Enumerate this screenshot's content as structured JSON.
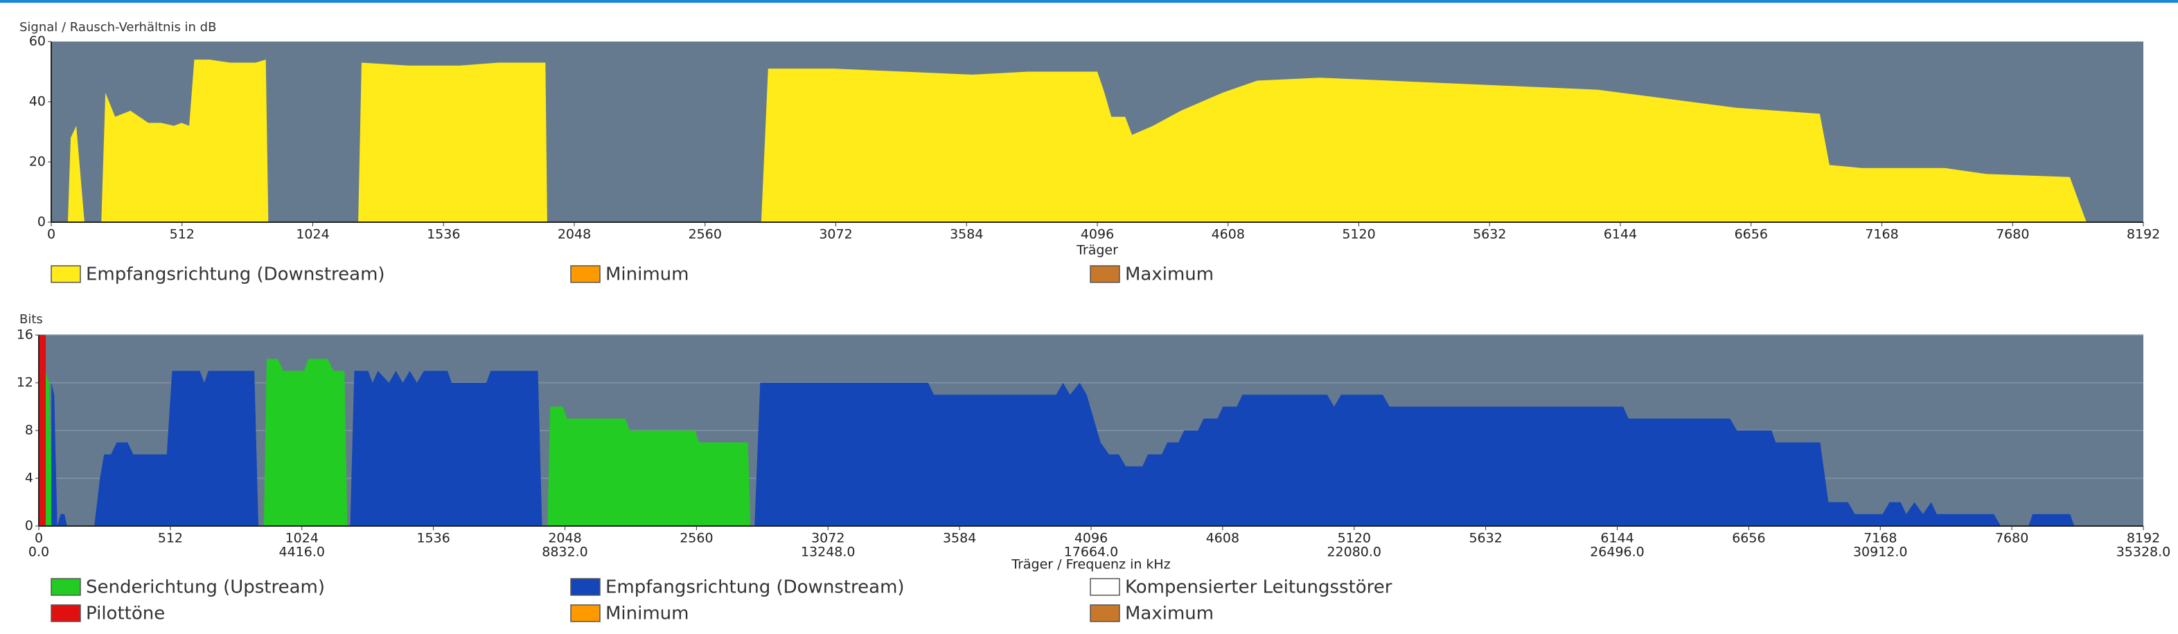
{
  "chart_data": [
    {
      "type": "area",
      "title": "Signal / Rausch-Verhältnis in dB",
      "xlabel": "Träger",
      "xlim": [
        0,
        8192
      ],
      "ylim": [
        0,
        60
      ],
      "xticks": [
        0,
        512,
        1024,
        1536,
        2048,
        2560,
        3072,
        3584,
        4096,
        4608,
        5120,
        5632,
        6144,
        6656,
        7168,
        7680,
        8192
      ],
      "yticks": [
        0,
        20,
        40,
        60
      ],
      "grid": false,
      "plot_background": "#667a8f",
      "series": [
        {
          "name": "Empfangsrichtung (Downstream)",
          "color": "#ffeb1a",
          "x": [
            65,
            76,
            98,
            130,
            160,
            196,
            212,
            250,
            310,
            380,
            430,
            480,
            510,
            540,
            560,
            620,
            700,
            800,
            840,
            850,
            1000,
            1202,
            1215,
            1400,
            1600,
            1750,
            1900,
            1935,
            1942,
            2300,
            2780,
            2807,
            3063,
            3607,
            3824,
            4096,
            4124,
            4151,
            4205,
            4232,
            4314,
            4423,
            4586,
            4722,
            4967,
            5239,
            5783,
            6055,
            6327,
            6599,
            6925,
            6963,
            7088,
            7414,
            7577,
            7904,
            7969
          ],
          "values": [
            0,
            28,
            32,
            0,
            null,
            0,
            43,
            35,
            37,
            33,
            33,
            32,
            33,
            32,
            54,
            54,
            53,
            53,
            54,
            0,
            null,
            0,
            53,
            52,
            52,
            53,
            53,
            53,
            0,
            null,
            0,
            51,
            51,
            49,
            50,
            50,
            43,
            35,
            35,
            29,
            32,
            37,
            43,
            47,
            48,
            47,
            45,
            44,
            41,
            38,
            36,
            19,
            18,
            18,
            16,
            15,
            0
          ]
        },
        {
          "name": "Minimum",
          "color": "#ff9900",
          "x": [],
          "values": []
        },
        {
          "name": "Maximum",
          "color": "#c8782a",
          "x": [],
          "values": []
        }
      ]
    },
    {
      "type": "area",
      "title": "Bits",
      "xlabel": "Träger / Frequenz in kHz",
      "xlim": [
        0,
        8192
      ],
      "ylim": [
        0,
        16
      ],
      "xticks": [
        0,
        512,
        1024,
        1536,
        2048,
        2560,
        3072,
        3584,
        4096,
        4608,
        5120,
        5632,
        6144,
        6656,
        7168,
        7680,
        8192
      ],
      "freq_ticks": [
        {
          "value": 0,
          "label": "0.0"
        },
        {
          "value": 1024,
          "label": "4416.0"
        },
        {
          "value": 2048,
          "label": "8832.0"
        },
        {
          "value": 3072,
          "label": "13248.0"
        },
        {
          "value": 4096,
          "label": "17664.0"
        },
        {
          "value": 5120,
          "label": "22080.0"
        },
        {
          "value": 6144,
          "label": "26496.0"
        },
        {
          "value": 7168,
          "label": "30912.0"
        },
        {
          "value": 8192,
          "label": "35328.0"
        }
      ],
      "yticks": [
        0,
        4,
        8,
        12,
        16
      ],
      "grid": true,
      "plot_background": "#667a8f",
      "series": [
        {
          "name": "Senderichtung (Upstream)",
          "color": "#22cc22",
          "x": [
            10,
            40,
            55,
            400,
            876,
            887,
            930,
            952,
            1033,
            1049,
            1125,
            1147,
            1190,
            1201,
            1600,
            1980,
            1991,
            2040,
            2056,
            2283,
            2300,
            2554,
            2570,
            2760,
            2770
          ],
          "values": [
            14,
            12,
            0,
            null,
            0,
            14,
            14,
            13,
            13,
            14,
            14,
            13,
            13,
            0,
            null,
            0,
            10,
            10,
            9,
            9,
            8,
            8,
            7,
            7,
            0
          ]
        },
        {
          "name": "Empfangsrichtung (Downstream)",
          "color": "#1446b8",
          "x": [
            49,
            60,
            72,
            85,
            100,
            110,
            160,
            216,
            238,
            254,
            281,
            303,
            346,
            368,
            498,
            519,
            627,
            644,
            660,
            839,
            855,
            1000,
            1212,
            1228,
            1282,
            1299,
            1320,
            1363,
            1390,
            1417,
            1444,
            1472,
            1499,
            1591,
            1607,
            1742,
            1759,
            1943,
            1959,
            2300,
            2786,
            2808,
            3462,
            3484,
            3960,
            3987,
            4014,
            4052,
            4079,
            4133,
            4166,
            4204,
            4231,
            4296,
            4317,
            4371,
            4393,
            4436,
            4458,
            4512,
            4534,
            4588,
            4609,
            4663,
            4685,
            5015,
            5042,
            5069,
            5231,
            5258,
            6167,
            6188,
            6583,
            6610,
            6745,
            6761,
            6934,
            6966,
            7042,
            7069,
            7177,
            7204,
            7247,
            7269,
            7301,
            7334,
            7366,
            7388,
            7610,
            7637,
            7690,
            7745,
            7761,
            7907,
            7923
          ],
          "values": [
            12,
            11,
            0,
            1,
            1,
            0,
            null,
            0,
            4,
            6,
            6,
            7,
            7,
            6,
            6,
            13,
            13,
            12,
            13,
            13,
            0,
            null,
            0,
            13,
            13,
            12,
            13,
            12,
            13,
            12,
            13,
            12,
            13,
            13,
            12,
            12,
            13,
            13,
            0,
            null,
            0,
            12,
            12,
            11,
            11,
            12,
            11,
            12,
            11,
            7,
            6,
            6,
            5,
            5,
            6,
            6,
            7,
            7,
            8,
            8,
            9,
            9,
            10,
            10,
            11,
            11,
            10,
            11,
            11,
            10,
            10,
            9,
            9,
            8,
            8,
            7,
            7,
            2,
            2,
            1,
            1,
            2,
            2,
            1,
            2,
            1,
            2,
            1,
            1,
            0,
            null,
            0,
            1,
            1,
            0
          ]
        },
        {
          "name": "Kompensierter Leitungsstörer",
          "color": "#ffffff",
          "x": [],
          "values": []
        },
        {
          "name": "Pilottöne",
          "color": "#e01010",
          "x": [
            0,
            27
          ],
          "values": [
            16,
            16
          ]
        },
        {
          "name": "Minimum",
          "color": "#ff9900",
          "x": [],
          "values": []
        },
        {
          "name": "Maximum",
          "color": "#c8782a",
          "x": [],
          "values": []
        }
      ]
    }
  ]
}
